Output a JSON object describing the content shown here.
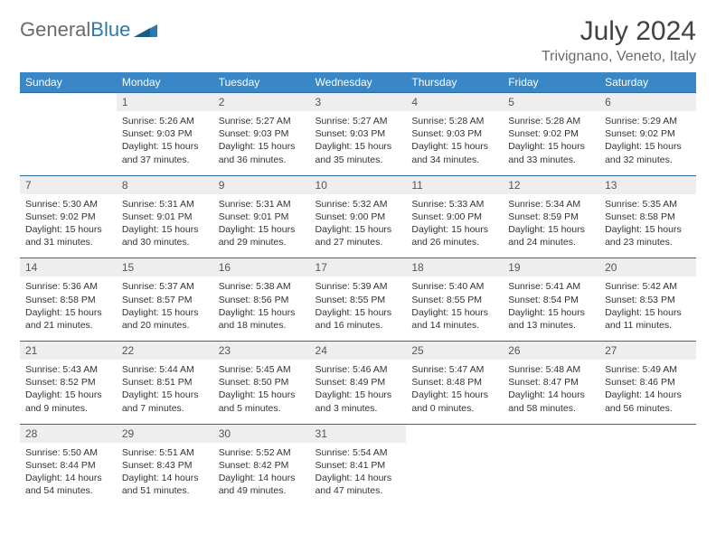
{
  "logo": {
    "word1": "General",
    "word2": "Blue"
  },
  "title": "July 2024",
  "location": "Trivignano, Veneto, Italy",
  "colors": {
    "header_bg": "#3a87c8",
    "header_text": "#ffffff",
    "daynum_bg": "#eeeeee",
    "daynum_text": "#555555",
    "row_border": "#2a6aa0",
    "body_text": "#333333",
    "logo_gray": "#6a6a6a",
    "logo_blue": "#2a7ab0"
  },
  "day_headers": [
    "Sunday",
    "Monday",
    "Tuesday",
    "Wednesday",
    "Thursday",
    "Friday",
    "Saturday"
  ],
  "weeks": [
    {
      "nums": [
        "",
        "1",
        "2",
        "3",
        "4",
        "5",
        "6"
      ],
      "cells": [
        null,
        {
          "sunrise": "Sunrise: 5:26 AM",
          "sunset": "Sunset: 9:03 PM",
          "day1": "Daylight: 15 hours",
          "day2": "and 37 minutes."
        },
        {
          "sunrise": "Sunrise: 5:27 AM",
          "sunset": "Sunset: 9:03 PM",
          "day1": "Daylight: 15 hours",
          "day2": "and 36 minutes."
        },
        {
          "sunrise": "Sunrise: 5:27 AM",
          "sunset": "Sunset: 9:03 PM",
          "day1": "Daylight: 15 hours",
          "day2": "and 35 minutes."
        },
        {
          "sunrise": "Sunrise: 5:28 AM",
          "sunset": "Sunset: 9:03 PM",
          "day1": "Daylight: 15 hours",
          "day2": "and 34 minutes."
        },
        {
          "sunrise": "Sunrise: 5:28 AM",
          "sunset": "Sunset: 9:02 PM",
          "day1": "Daylight: 15 hours",
          "day2": "and 33 minutes."
        },
        {
          "sunrise": "Sunrise: 5:29 AM",
          "sunset": "Sunset: 9:02 PM",
          "day1": "Daylight: 15 hours",
          "day2": "and 32 minutes."
        }
      ]
    },
    {
      "nums": [
        "7",
        "8",
        "9",
        "10",
        "11",
        "12",
        "13"
      ],
      "cells": [
        {
          "sunrise": "Sunrise: 5:30 AM",
          "sunset": "Sunset: 9:02 PM",
          "day1": "Daylight: 15 hours",
          "day2": "and 31 minutes."
        },
        {
          "sunrise": "Sunrise: 5:31 AM",
          "sunset": "Sunset: 9:01 PM",
          "day1": "Daylight: 15 hours",
          "day2": "and 30 minutes."
        },
        {
          "sunrise": "Sunrise: 5:31 AM",
          "sunset": "Sunset: 9:01 PM",
          "day1": "Daylight: 15 hours",
          "day2": "and 29 minutes."
        },
        {
          "sunrise": "Sunrise: 5:32 AM",
          "sunset": "Sunset: 9:00 PM",
          "day1": "Daylight: 15 hours",
          "day2": "and 27 minutes."
        },
        {
          "sunrise": "Sunrise: 5:33 AM",
          "sunset": "Sunset: 9:00 PM",
          "day1": "Daylight: 15 hours",
          "day2": "and 26 minutes."
        },
        {
          "sunrise": "Sunrise: 5:34 AM",
          "sunset": "Sunset: 8:59 PM",
          "day1": "Daylight: 15 hours",
          "day2": "and 24 minutes."
        },
        {
          "sunrise": "Sunrise: 5:35 AM",
          "sunset": "Sunset: 8:58 PM",
          "day1": "Daylight: 15 hours",
          "day2": "and 23 minutes."
        }
      ]
    },
    {
      "nums": [
        "14",
        "15",
        "16",
        "17",
        "18",
        "19",
        "20"
      ],
      "cells": [
        {
          "sunrise": "Sunrise: 5:36 AM",
          "sunset": "Sunset: 8:58 PM",
          "day1": "Daylight: 15 hours",
          "day2": "and 21 minutes."
        },
        {
          "sunrise": "Sunrise: 5:37 AM",
          "sunset": "Sunset: 8:57 PM",
          "day1": "Daylight: 15 hours",
          "day2": "and 20 minutes."
        },
        {
          "sunrise": "Sunrise: 5:38 AM",
          "sunset": "Sunset: 8:56 PM",
          "day1": "Daylight: 15 hours",
          "day2": "and 18 minutes."
        },
        {
          "sunrise": "Sunrise: 5:39 AM",
          "sunset": "Sunset: 8:55 PM",
          "day1": "Daylight: 15 hours",
          "day2": "and 16 minutes."
        },
        {
          "sunrise": "Sunrise: 5:40 AM",
          "sunset": "Sunset: 8:55 PM",
          "day1": "Daylight: 15 hours",
          "day2": "and 14 minutes."
        },
        {
          "sunrise": "Sunrise: 5:41 AM",
          "sunset": "Sunset: 8:54 PM",
          "day1": "Daylight: 15 hours",
          "day2": "and 13 minutes."
        },
        {
          "sunrise": "Sunrise: 5:42 AM",
          "sunset": "Sunset: 8:53 PM",
          "day1": "Daylight: 15 hours",
          "day2": "and 11 minutes."
        }
      ]
    },
    {
      "nums": [
        "21",
        "22",
        "23",
        "24",
        "25",
        "26",
        "27"
      ],
      "cells": [
        {
          "sunrise": "Sunrise: 5:43 AM",
          "sunset": "Sunset: 8:52 PM",
          "day1": "Daylight: 15 hours",
          "day2": "and 9 minutes."
        },
        {
          "sunrise": "Sunrise: 5:44 AM",
          "sunset": "Sunset: 8:51 PM",
          "day1": "Daylight: 15 hours",
          "day2": "and 7 minutes."
        },
        {
          "sunrise": "Sunrise: 5:45 AM",
          "sunset": "Sunset: 8:50 PM",
          "day1": "Daylight: 15 hours",
          "day2": "and 5 minutes."
        },
        {
          "sunrise": "Sunrise: 5:46 AM",
          "sunset": "Sunset: 8:49 PM",
          "day1": "Daylight: 15 hours",
          "day2": "and 3 minutes."
        },
        {
          "sunrise": "Sunrise: 5:47 AM",
          "sunset": "Sunset: 8:48 PM",
          "day1": "Daylight: 15 hours",
          "day2": "and 0 minutes."
        },
        {
          "sunrise": "Sunrise: 5:48 AM",
          "sunset": "Sunset: 8:47 PM",
          "day1": "Daylight: 14 hours",
          "day2": "and 58 minutes."
        },
        {
          "sunrise": "Sunrise: 5:49 AM",
          "sunset": "Sunset: 8:46 PM",
          "day1": "Daylight: 14 hours",
          "day2": "and 56 minutes."
        }
      ]
    },
    {
      "nums": [
        "28",
        "29",
        "30",
        "31",
        "",
        "",
        ""
      ],
      "cells": [
        {
          "sunrise": "Sunrise: 5:50 AM",
          "sunset": "Sunset: 8:44 PM",
          "day1": "Daylight: 14 hours",
          "day2": "and 54 minutes."
        },
        {
          "sunrise": "Sunrise: 5:51 AM",
          "sunset": "Sunset: 8:43 PM",
          "day1": "Daylight: 14 hours",
          "day2": "and 51 minutes."
        },
        {
          "sunrise": "Sunrise: 5:52 AM",
          "sunset": "Sunset: 8:42 PM",
          "day1": "Daylight: 14 hours",
          "day2": "and 49 minutes."
        },
        {
          "sunrise": "Sunrise: 5:54 AM",
          "sunset": "Sunset: 8:41 PM",
          "day1": "Daylight: 14 hours",
          "day2": "and 47 minutes."
        },
        null,
        null,
        null
      ]
    }
  ]
}
